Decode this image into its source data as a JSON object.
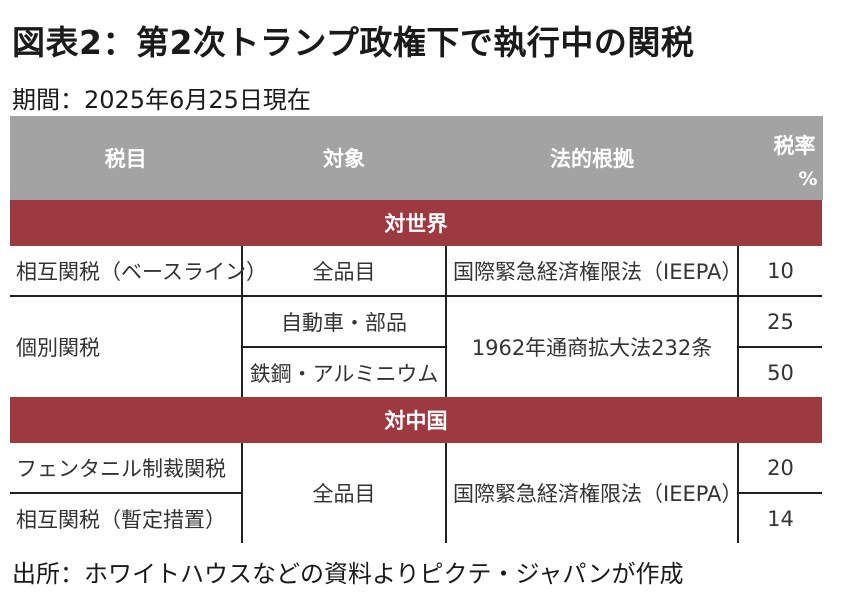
{
  "title": "図表2：第2次トランプ政権下で執行中の関税",
  "subtitle": "期間：2025年6月25日現在",
  "source": "出所：ホワイトハウスなどの資料よりピクテ・ジャパンが作成",
  "colors": {
    "header_bg": "#a3a3a3",
    "section_bg": "#9c3a40",
    "border": "#222222"
  },
  "table": {
    "headers": {
      "item": "税目",
      "target": "対象",
      "legal_basis": "法的根拠",
      "rate": "税率",
      "rate_unit": "%"
    },
    "sections": [
      {
        "label": "対世界",
        "rows": [
          {
            "item": "相互関税（ベースライン）",
            "target": "全品目",
            "legal_basis": "国際緊急経済権限法（IEEPA）",
            "rate": "10"
          },
          {
            "item": "個別関税",
            "target": "自動車・部品",
            "legal_basis": "1962年通商拡大法232条",
            "rate": "25"
          },
          {
            "target": "鉄鋼・アルミニウム",
            "rate": "50"
          }
        ]
      },
      {
        "label": "対中国",
        "rows": [
          {
            "item": "フェンタニル制裁関税",
            "target": "全品目",
            "legal_basis": "国際緊急経済権限法（IEEPA）",
            "rate": "20"
          },
          {
            "item": "相互関税（暫定措置）",
            "rate": "14"
          }
        ]
      }
    ]
  }
}
